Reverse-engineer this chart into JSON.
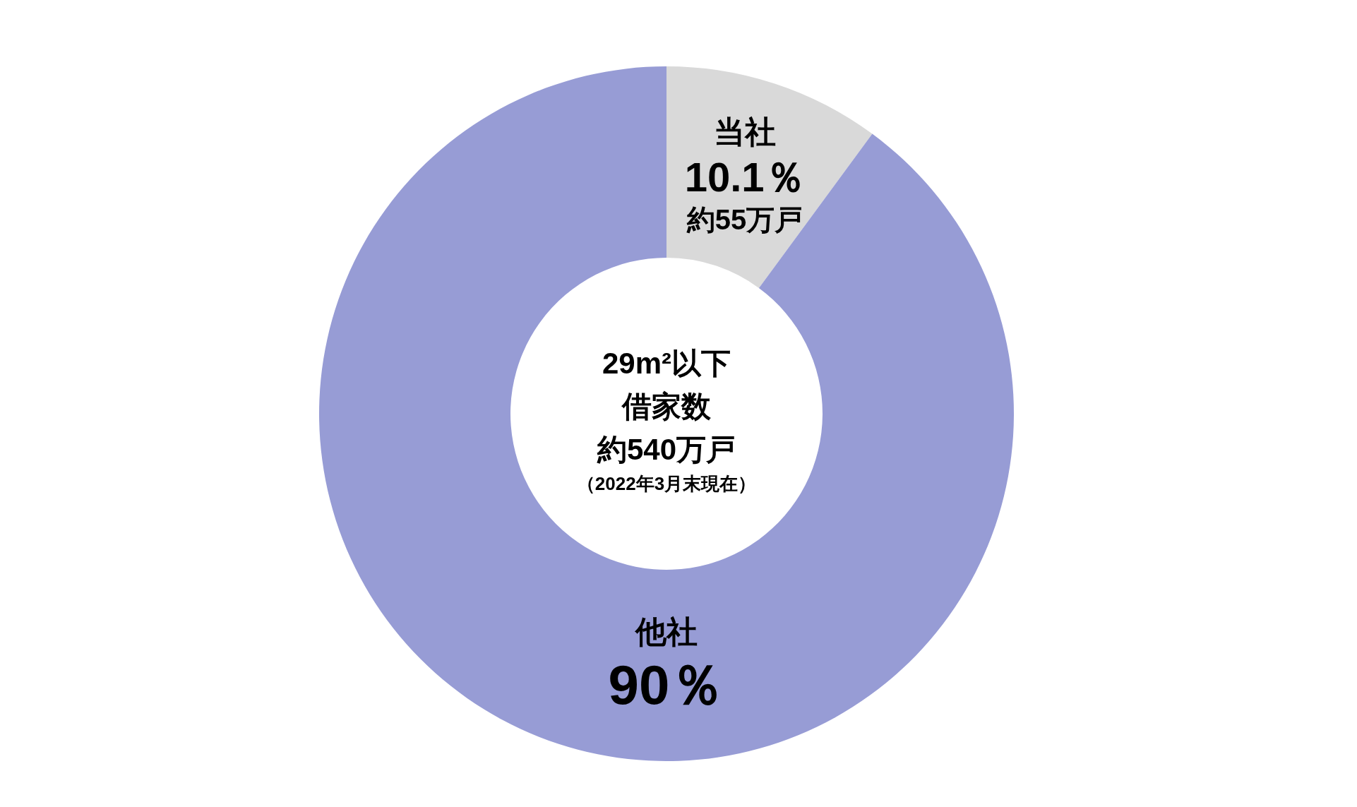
{
  "chart_data": {
    "type": "donut",
    "categories": [
      "当社",
      "他社"
    ],
    "values": [
      10.1,
      90
    ],
    "colors": [
      "#d9d9d9",
      "#979cd5"
    ],
    "value_labels": [
      "10.1％",
      "90％"
    ],
    "legend": false,
    "annotations": [
      "29m²以下",
      "借家数",
      "約540万戸",
      "（2022年3月末現在）",
      {
        "text": "約55万戸",
        "x": "当社"
      }
    ]
  }
}
